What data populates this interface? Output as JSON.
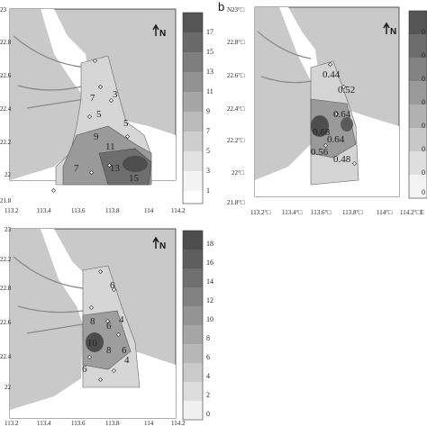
{
  "panel_b_label": "b",
  "north_label": "N",
  "panels": [
    {
      "id": "a",
      "lon_ticks": [
        "113.2",
        "113.4",
        "113.6",
        "113.8",
        "114",
        "114.2"
      ],
      "lat_ticks": [
        "23",
        "22.8",
        "22.6",
        "22.4",
        "22.2",
        "22",
        "21.8"
      ],
      "contour_labels": [
        "7",
        "3",
        "5",
        "5",
        "9",
        "11",
        "7",
        "13",
        "15"
      ],
      "colorbar_ticks": [
        "17",
        "15",
        "13",
        "11",
        "9",
        "7",
        "5",
        "3",
        "1"
      ]
    },
    {
      "id": "b",
      "lon_ticks": [
        "113.2°□",
        "113.4°□",
        "113.6°□",
        "113.8°□",
        "114°□",
        "114.2°□E"
      ],
      "lat_ticks": [
        "N23°□",
        "22.8°□",
        "22.6°□",
        "22.4°□",
        "22.2°□",
        "22°□",
        "21.8°□"
      ],
      "contour_labels": [
        "0.44",
        "0.52",
        "0.64",
        "0.68",
        "0.64",
        "0.56",
        "0.48"
      ],
      "colorbar_ticks": [
        "0",
        "0",
        "0",
        "0",
        "0",
        "0",
        "0",
        "0"
      ]
    },
    {
      "id": "c",
      "lon_ticks": [
        "113.2",
        "113.4",
        "113.6",
        "113.8",
        "114",
        "114.2"
      ],
      "lat_ticks": [
        "23",
        "22.8",
        "22.6",
        "22.4",
        "22.2",
        "22"
      ],
      "contour_labels": [
        "6",
        "8",
        "6",
        "4",
        "10",
        "8",
        "6",
        "6",
        "4"
      ],
      "colorbar_ticks": [
        "18",
        "16",
        "14",
        "12",
        "10",
        "8",
        "6",
        "4",
        "2",
        "0"
      ]
    }
  ],
  "colors": {
    "land": "#c8c8c8",
    "water": "#ffffff",
    "frame": "#333333"
  }
}
